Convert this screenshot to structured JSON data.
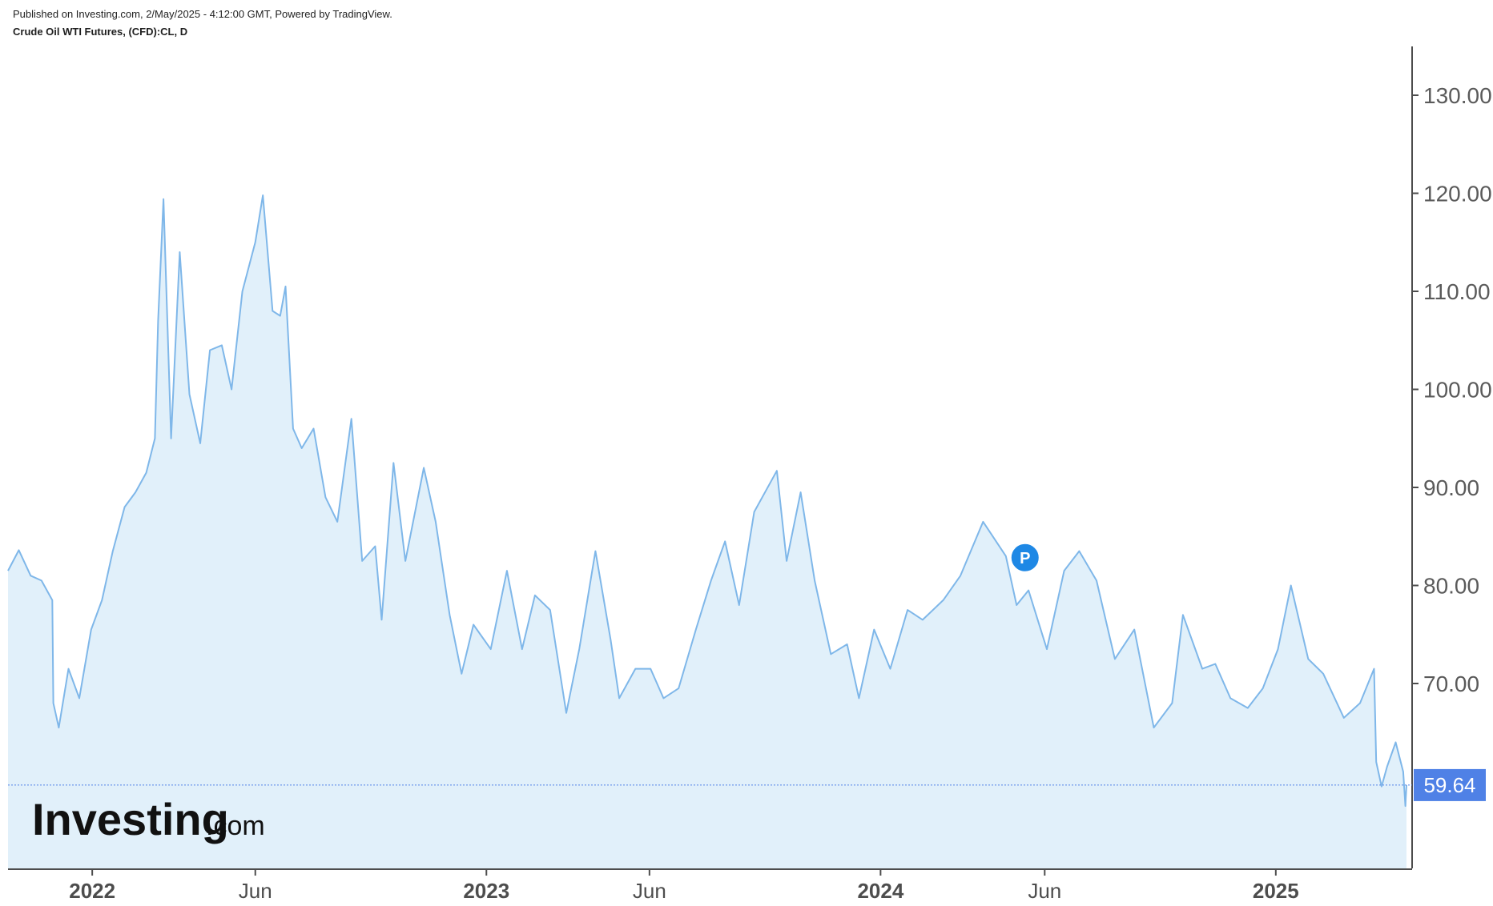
{
  "header": {
    "published": "Published on Investing.com, 2/May/2025 - 4:12:00 GMT, Powered by TradingView.",
    "instrument": "Crude Oil WTI Futures, (CFD):CL, D"
  },
  "logo": {
    "brand": "Investing",
    "suffix": ".com"
  },
  "marker": {
    "label": "P",
    "date": "2024-04-26",
    "value": 83.0
  },
  "last_price": {
    "label": "59.64",
    "value": 59.64
  },
  "colors": {
    "line": "#7fb7e9",
    "area": "#e1f0fa",
    "axis": "#4d4d4d",
    "last_price_bg": "#4f81e6",
    "marker_bg": "#1e88e5"
  },
  "chart_data": {
    "type": "area",
    "title": "Crude Oil WTI Futures, (CFD):CL, D",
    "ylim": [
      60,
      130
    ],
    "grid": false,
    "y_axis_position": "right",
    "y_ticks": [
      {
        "value": 130,
        "label": "130.00"
      },
      {
        "value": 120,
        "label": "120.00"
      },
      {
        "value": 110,
        "label": "110.00"
      },
      {
        "value": 100,
        "label": "100.00"
      },
      {
        "value": 90,
        "label": "90.00"
      },
      {
        "value": 80,
        "label": "80.00"
      },
      {
        "value": 70,
        "label": "70.00"
      }
    ],
    "x_ticks": [
      {
        "date": "2022-01-01",
        "label": "2022",
        "kind": "year"
      },
      {
        "date": "2022-06-01",
        "label": "Jun",
        "kind": "month"
      },
      {
        "date": "2023-01-01",
        "label": "2023",
        "kind": "year"
      },
      {
        "date": "2023-06-01",
        "label": "Jun",
        "kind": "month"
      },
      {
        "date": "2024-01-01",
        "label": "2024",
        "kind": "year"
      },
      {
        "date": "2024-06-01",
        "label": "Jun",
        "kind": "month"
      },
      {
        "date": "2025-01-01",
        "label": "2025",
        "kind": "year"
      }
    ],
    "xlim": [
      "2021-10-15",
      "2025-05-05"
    ],
    "series": [
      {
        "values": [
          [
            "2021-10-15",
            81.5
          ],
          [
            "2021-10-25",
            83.6
          ],
          [
            "2021-11-05",
            81.0
          ],
          [
            "2021-11-15",
            80.5
          ],
          [
            "2021-11-25",
            78.5
          ],
          [
            "2021-11-26",
            68.0
          ],
          [
            "2021-12-01",
            65.5
          ],
          [
            "2021-12-10",
            71.5
          ],
          [
            "2021-12-20",
            68.5
          ],
          [
            "2021-12-31",
            75.5
          ],
          [
            "2022-01-10",
            78.5
          ],
          [
            "2022-01-20",
            83.5
          ],
          [
            "2022-01-31",
            88.0
          ],
          [
            "2022-02-10",
            89.5
          ],
          [
            "2022-02-20",
            91.5
          ],
          [
            "2022-02-28",
            95.0
          ],
          [
            "2022-03-03",
            107.0
          ],
          [
            "2022-03-08",
            119.4
          ],
          [
            "2022-03-15",
            95.0
          ],
          [
            "2022-03-23",
            114.0
          ],
          [
            "2022-04-01",
            99.5
          ],
          [
            "2022-04-11",
            94.5
          ],
          [
            "2022-04-20",
            104.0
          ],
          [
            "2022-05-01",
            104.5
          ],
          [
            "2022-05-10",
            100.0
          ],
          [
            "2022-05-20",
            110.0
          ],
          [
            "2022-06-01",
            115.0
          ],
          [
            "2022-06-08",
            119.8
          ],
          [
            "2022-06-17",
            108.0
          ],
          [
            "2022-06-24",
            107.5
          ],
          [
            "2022-06-29",
            110.5
          ],
          [
            "2022-07-06",
            96.0
          ],
          [
            "2022-07-14",
            94.0
          ],
          [
            "2022-07-25",
            96.0
          ],
          [
            "2022-08-05",
            89.0
          ],
          [
            "2022-08-16",
            86.5
          ],
          [
            "2022-08-29",
            97.0
          ],
          [
            "2022-09-08",
            82.5
          ],
          [
            "2022-09-20",
            84.0
          ],
          [
            "2022-09-26",
            76.5
          ],
          [
            "2022-10-07",
            92.5
          ],
          [
            "2022-10-18",
            82.5
          ],
          [
            "2022-11-04",
            92.0
          ],
          [
            "2022-11-15",
            86.5
          ],
          [
            "2022-11-28",
            77.0
          ],
          [
            "2022-12-09",
            71.0
          ],
          [
            "2022-12-20",
            76.0
          ],
          [
            "2023-01-05",
            73.5
          ],
          [
            "2023-01-20",
            81.5
          ],
          [
            "2023-02-03",
            73.5
          ],
          [
            "2023-02-15",
            79.0
          ],
          [
            "2023-03-01",
            77.5
          ],
          [
            "2023-03-16",
            67.0
          ],
          [
            "2023-03-28",
            73.5
          ],
          [
            "2023-04-12",
            83.5
          ],
          [
            "2023-04-26",
            74.5
          ],
          [
            "2023-05-04",
            68.5
          ],
          [
            "2023-05-19",
            71.5
          ],
          [
            "2023-06-02",
            71.5
          ],
          [
            "2023-06-14",
            68.5
          ],
          [
            "2023-06-28",
            69.5
          ],
          [
            "2023-07-14",
            75.5
          ],
          [
            "2023-07-28",
            80.5
          ],
          [
            "2023-08-10",
            84.5
          ],
          [
            "2023-08-23",
            78.0
          ],
          [
            "2023-09-06",
            87.5
          ],
          [
            "2023-09-27",
            91.7
          ],
          [
            "2023-10-06",
            82.5
          ],
          [
            "2023-10-19",
            89.5
          ],
          [
            "2023-11-01",
            80.5
          ],
          [
            "2023-11-16",
            73.0
          ],
          [
            "2023-12-01",
            74.0
          ],
          [
            "2023-12-12",
            68.5
          ],
          [
            "2023-12-26",
            75.5
          ],
          [
            "2024-01-10",
            71.5
          ],
          [
            "2024-01-26",
            77.5
          ],
          [
            "2024-02-09",
            76.5
          ],
          [
            "2024-02-28",
            78.5
          ],
          [
            "2024-03-15",
            81.0
          ],
          [
            "2024-04-05",
            86.5
          ],
          [
            "2024-04-26",
            83.0
          ],
          [
            "2024-05-06",
            78.0
          ],
          [
            "2024-05-17",
            79.5
          ],
          [
            "2024-06-03",
            73.5
          ],
          [
            "2024-06-19",
            81.5
          ],
          [
            "2024-07-03",
            83.5
          ],
          [
            "2024-07-19",
            80.5
          ],
          [
            "2024-08-05",
            72.5
          ],
          [
            "2024-08-23",
            75.5
          ],
          [
            "2024-09-10",
            65.5
          ],
          [
            "2024-09-27",
            68.0
          ],
          [
            "2024-10-07",
            77.0
          ],
          [
            "2024-10-25",
            71.5
          ],
          [
            "2024-11-06",
            72.0
          ],
          [
            "2024-11-20",
            68.5
          ],
          [
            "2024-12-06",
            67.5
          ],
          [
            "2024-12-20",
            69.5
          ],
          [
            "2025-01-03",
            73.5
          ],
          [
            "2025-01-15",
            80.0
          ],
          [
            "2025-01-31",
            72.5
          ],
          [
            "2025-02-14",
            71.0
          ],
          [
            "2025-03-05",
            66.5
          ],
          [
            "2025-03-20",
            68.0
          ],
          [
            "2025-04-02",
            71.5
          ],
          [
            "2025-04-04",
            62.0
          ],
          [
            "2025-04-09",
            59.5
          ],
          [
            "2025-04-14",
            61.5
          ],
          [
            "2025-04-22",
            64.0
          ],
          [
            "2025-04-29",
            61.0
          ],
          [
            "2025-05-01",
            57.5
          ],
          [
            "2025-05-02",
            59.64
          ]
        ]
      }
    ]
  }
}
